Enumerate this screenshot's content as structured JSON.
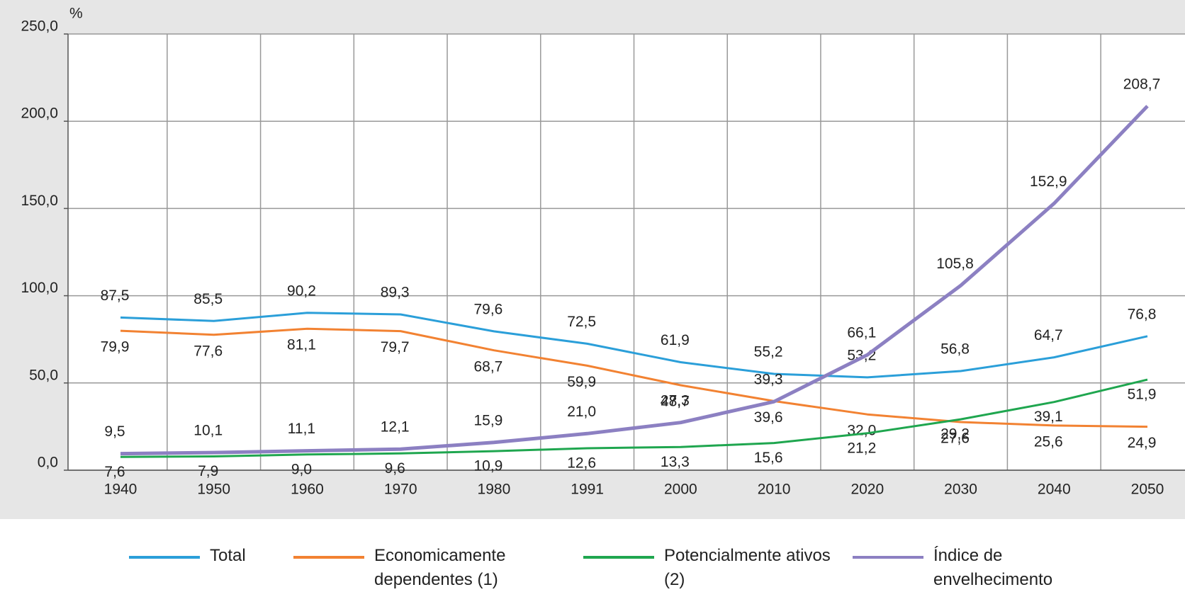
{
  "chart_data": {
    "type": "line",
    "y_unit": "%",
    "categories": [
      "1940",
      "1950",
      "1960",
      "1970",
      "1980",
      "1991",
      "2000",
      "2010",
      "2020",
      "2030",
      "2040",
      "2050"
    ],
    "series": [
      {
        "name": "Total",
        "color": "#2b9fd9",
        "values": [
          87.5,
          85.5,
          90.2,
          89.3,
          79.6,
          72.5,
          61.9,
          55.2,
          53.2,
          56.8,
          64.7,
          76.8
        ],
        "value_labels": [
          "87,5",
          "85,5",
          "90,2",
          "89,3",
          "79,6",
          "72,5",
          "61,9",
          "55,2",
          "53,2",
          "56,8",
          "64,7",
          "76,8"
        ]
      },
      {
        "name": "Economicamente dependentes (1)",
        "color": "#f28232",
        "values": [
          79.9,
          77.6,
          81.1,
          79.7,
          68.7,
          59.9,
          48.7,
          39.6,
          32.0,
          27.6,
          25.6,
          24.9
        ],
        "value_labels": [
          "79,9",
          "77,6",
          "81,1",
          "79,7",
          "68,7",
          "59,9",
          "48,7",
          "39,6",
          "32,0",
          "27,6",
          "25,6",
          "24,9"
        ]
      },
      {
        "name": "Potencialmente ativos (2)",
        "color": "#1fa64f",
        "values": [
          7.6,
          7.9,
          9.0,
          9.6,
          10.9,
          12.6,
          13.3,
          15.6,
          21.2,
          29.2,
          39.1,
          51.9
        ],
        "value_labels": [
          "7,6",
          "7,9",
          "9,0",
          "9,6",
          "10,9",
          "12,6",
          "13,3",
          "15,6",
          "21,2",
          "29,2",
          "39,1",
          "51,9"
        ]
      },
      {
        "name": "Índice de envelhecimento",
        "color": "#8c80c2",
        "values": [
          9.5,
          10.1,
          11.1,
          12.1,
          15.9,
          21.0,
          27.3,
          39.3,
          66.1,
          105.8,
          152.9,
          208.7
        ],
        "value_labels": [
          "9,5",
          "10,1",
          "11,1",
          "12,1",
          "15,9",
          "21,0",
          "27,3",
          "39,3",
          "66,1",
          "105,8",
          "152,9",
          "208,7"
        ]
      }
    ],
    "ylim": [
      0,
      250
    ],
    "yticks": [
      {
        "value": 0,
        "label": "0,0"
      },
      {
        "value": 50,
        "label": "50,0"
      },
      {
        "value": 100,
        "label": "100,0"
      },
      {
        "value": 150,
        "label": "150,0"
      },
      {
        "value": 200,
        "label": "200,0"
      },
      {
        "value": 250,
        "label": "250,0"
      }
    ],
    "grid": true,
    "legend": "bottom"
  }
}
